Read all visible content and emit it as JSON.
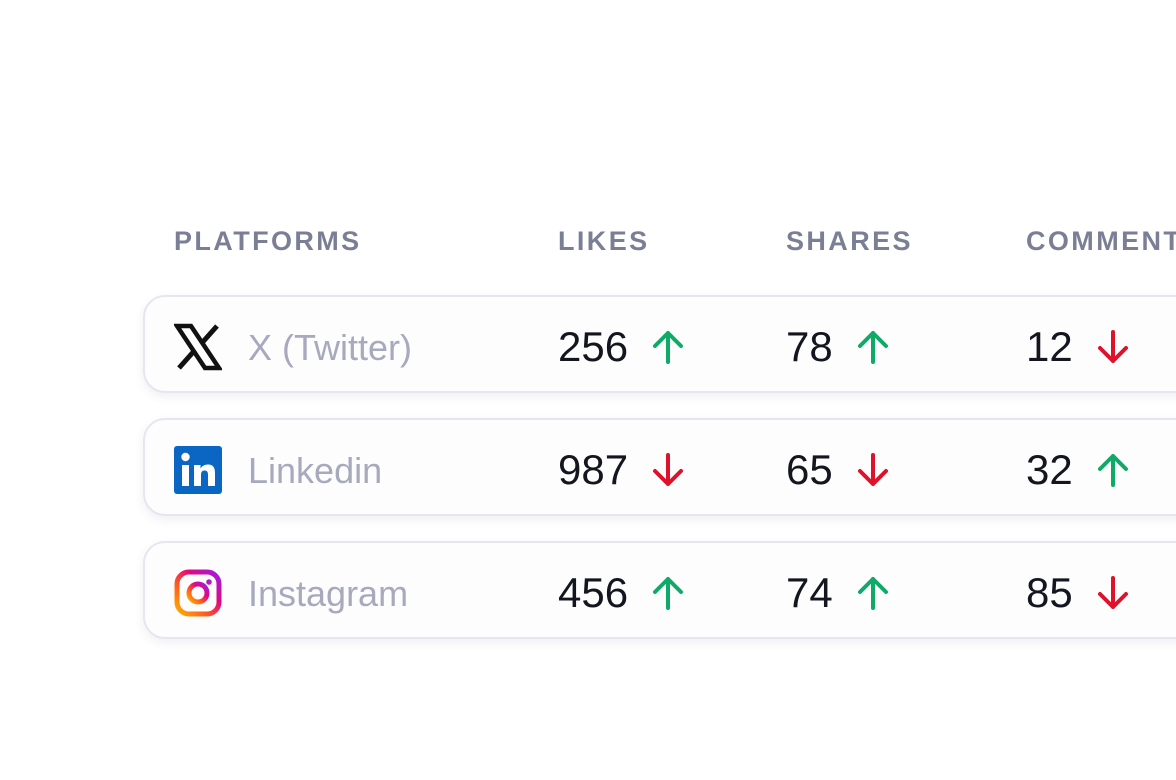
{
  "table": {
    "headers": {
      "platforms": "PLATFORMS",
      "likes": "LIKES",
      "shares": "SHARES",
      "comments": "COMMENTS"
    },
    "rows": [
      {
        "platform": "X (Twitter)",
        "icon": "x-twitter-icon",
        "likes": {
          "value": "256",
          "trend": "up"
        },
        "shares": {
          "value": "78",
          "trend": "up"
        },
        "comments": {
          "value": "12",
          "trend": "down"
        }
      },
      {
        "platform": "Linkedin",
        "icon": "linkedin-icon",
        "likes": {
          "value": "987",
          "trend": "down"
        },
        "shares": {
          "value": "65",
          "trend": "down"
        },
        "comments": {
          "value": "32",
          "trend": "up"
        }
      },
      {
        "platform": "Instagram",
        "icon": "instagram-icon",
        "likes": {
          "value": "456",
          "trend": "up"
        },
        "shares": {
          "value": "74",
          "trend": "up"
        },
        "comments": {
          "value": "85",
          "trend": "down"
        }
      }
    ]
  },
  "colors": {
    "trend_up": "#0faa68",
    "trend_down": "#e0112b",
    "header_text": "#7b7f95",
    "platform_text": "#a7a9bd",
    "value_text": "#14161f",
    "linkedin_brand": "#0a66c2"
  }
}
